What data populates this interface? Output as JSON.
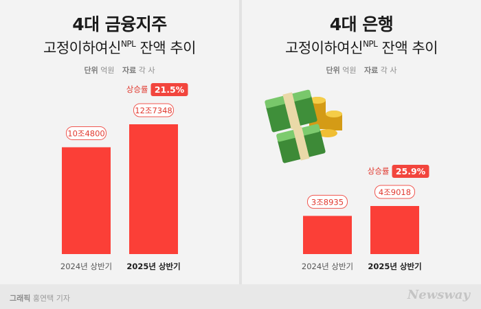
{
  "left": {
    "title_main": "4대 금융지주",
    "title_sub": "고정이하여신",
    "title_sup": "NPL",
    "title_tail": " 잔액 추이",
    "unit_label": "단위",
    "unit_value": "억원",
    "source_label": "자료",
    "source_value": "각 사"
  },
  "right": {
    "title_main": "4대 은행",
    "title_sub": "고정이하여신",
    "title_sup": "NPL",
    "title_tail": " 잔액 추이",
    "unit_label": "단위",
    "unit_value": "억원",
    "source_label": "자료",
    "source_value": "각 사"
  },
  "footer": {
    "credit_label": "그래픽",
    "credit_value": "홍연택 기자",
    "brand": "Newsway"
  },
  "colors": {
    "bar": "#fb3f37",
    "label_border": "#f0564f",
    "label_text": "#e0392f",
    "badge_bg": "#f2453d"
  },
  "chart_data": [
    {
      "type": "bar",
      "title": "4대 금융지주 고정이하여신NPL 잔액 추이",
      "categories": [
        "2024년 상반기",
        "2025년 상반기"
      ],
      "values": [
        104800,
        127348
      ],
      "value_labels": [
        "10조4800",
        "12조7348"
      ],
      "growth_label": "상승률",
      "growth_value": "21.5%",
      "unit": "억원",
      "ylim": [
        0,
        127348
      ]
    },
    {
      "type": "bar",
      "title": "4대 은행 고정이하여신NPL 잔액 추이",
      "categories": [
        "2024년 상반기",
        "2025년 상반기"
      ],
      "values": [
        38935,
        49018
      ],
      "value_labels": [
        "3조8935",
        "4조9018"
      ],
      "growth_label": "상승률",
      "growth_value": "25.9%",
      "unit": "억원",
      "ylim": [
        0,
        49018
      ]
    }
  ]
}
